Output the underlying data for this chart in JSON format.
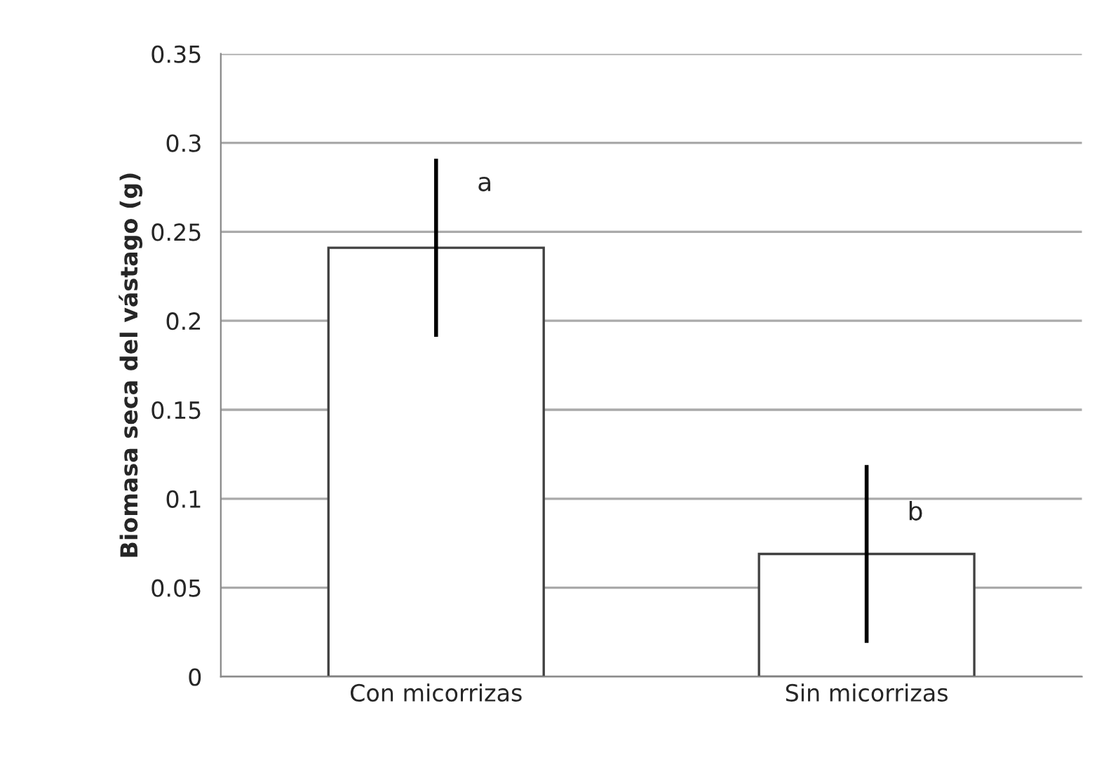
{
  "chart_data": {
    "type": "bar",
    "ylabel": "Biomasa seca del vástago (g)",
    "categories": [
      "Con micorrizas",
      "Sin micorrizas"
    ],
    "values": [
      0.241,
      0.069
    ],
    "errors": [
      0.05,
      0.05
    ],
    "color": "#ffffff",
    "ylim": [
      0,
      0.35
    ],
    "yticks": [
      0,
      0.05,
      0.1,
      0.15,
      0.2,
      0.25,
      0.3,
      0.35
    ],
    "grid": "y",
    "annotations": [
      {
        "text": "a",
        "x": "Con micorrizas",
        "y": 0.27
      },
      {
        "text": "b",
        "x": "Sin micorrizas",
        "y": 0.085
      }
    ]
  }
}
